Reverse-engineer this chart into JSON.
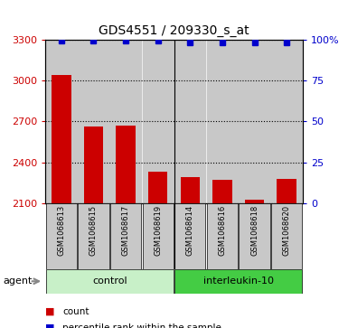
{
  "title": "GDS4551 / 209330_s_at",
  "samples": [
    "GSM1068613",
    "GSM1068615",
    "GSM1068617",
    "GSM1068619",
    "GSM1068614",
    "GSM1068616",
    "GSM1068618",
    "GSM1068620"
  ],
  "counts": [
    3040,
    2660,
    2670,
    2330,
    2290,
    2270,
    2130,
    2280
  ],
  "percentile_ranks": [
    99,
    99,
    99,
    99,
    98,
    98,
    98,
    98
  ],
  "groups": [
    "control",
    "control",
    "control",
    "control",
    "interleukin-10",
    "interleukin-10",
    "interleukin-10",
    "interleukin-10"
  ],
  "bar_color": "#cc0000",
  "dot_color": "#0000cc",
  "ylim_left": [
    2100,
    3300
  ],
  "ylim_right": [
    0,
    100
  ],
  "yticks_left": [
    2100,
    2400,
    2700,
    3000,
    3300
  ],
  "yticks_right": [
    0,
    25,
    50,
    75,
    100
  ],
  "ytick_labels_right": [
    "0",
    "25",
    "50",
    "75",
    "100%"
  ],
  "agent_label": "agent",
  "legend_count": "count",
  "legend_percentile": "percentile rank within the sample",
  "bar_width": 0.6,
  "background_color": "#ffffff",
  "tick_area_color": "#c8c8c8",
  "control_color": "#c8f0c8",
  "interleukin_color": "#44cc44"
}
